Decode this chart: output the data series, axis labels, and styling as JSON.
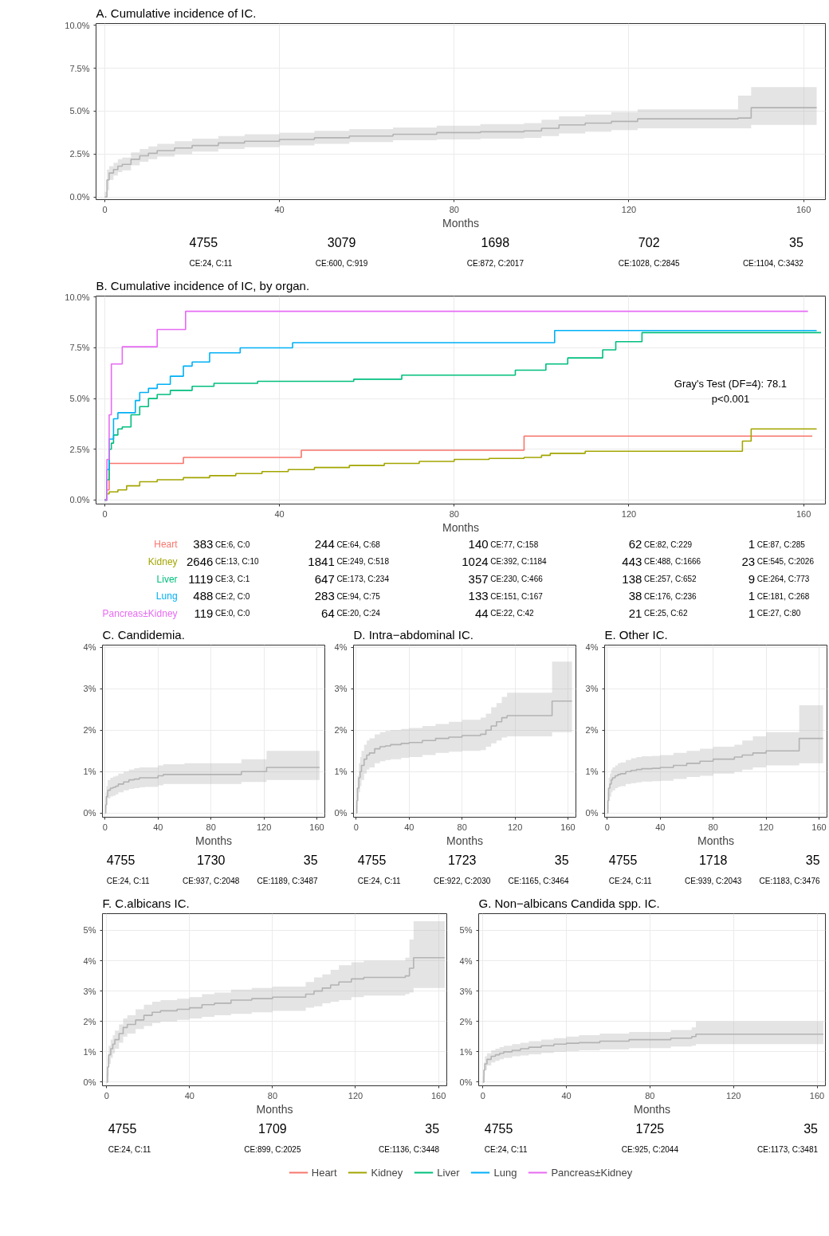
{
  "chart_data": [
    {
      "type": "step",
      "title": "A. Cumulative incidence of IC.",
      "xlabel": "Months",
      "xlim": [
        -2,
        165
      ],
      "ylim": [
        -0.15,
        10.1
      ],
      "xticks": [
        0,
        40,
        80,
        120,
        160
      ],
      "yticks": [
        {
          "value": 0,
          "label": "0.0%"
        },
        {
          "value": 2.5,
          "label": "2.5%"
        },
        {
          "value": 5,
          "label": "5.0%"
        },
        {
          "value": 7.5,
          "label": "7.5%"
        },
        {
          "value": 10,
          "label": "10.0%"
        }
      ],
      "grid": true,
      "series": [
        {
          "color": "#b3b3b3",
          "x": [
            0,
            0.5,
            1,
            2,
            3,
            4,
            6,
            8,
            10,
            12,
            16,
            20,
            26,
            32,
            40,
            48,
            56,
            66,
            76,
            86,
            96,
            100,
            104,
            110,
            116,
            122,
            145,
            148,
            163
          ],
          "values": [
            0,
            1.0,
            1.4,
            1.6,
            1.8,
            1.9,
            2.2,
            2.4,
            2.55,
            2.7,
            2.85,
            3.0,
            3.15,
            3.25,
            3.35,
            3.45,
            3.55,
            3.65,
            3.75,
            3.8,
            3.85,
            4.0,
            4.2,
            4.3,
            4.4,
            4.55,
            4.6,
            5.2,
            5.2
          ],
          "lower": [
            0,
            0.4,
            1.0,
            1.25,
            1.45,
            1.55,
            1.85,
            2.05,
            2.2,
            2.35,
            2.5,
            2.65,
            2.8,
            2.9,
            3.0,
            3.1,
            3.2,
            3.3,
            3.35,
            3.4,
            3.45,
            3.55,
            3.7,
            3.8,
            3.9,
            4.0,
            4.0,
            4.2,
            4.2
          ],
          "upper": [
            0.3,
            1.6,
            1.8,
            2.0,
            2.2,
            2.3,
            2.6,
            2.8,
            2.95,
            3.1,
            3.25,
            3.4,
            3.55,
            3.65,
            3.75,
            3.85,
            3.95,
            4.05,
            4.15,
            4.25,
            4.3,
            4.5,
            4.7,
            4.8,
            4.95,
            5.1,
            5.9,
            6.4,
            6.4
          ]
        }
      ],
      "annotations": [
        "4755",
        "CE:24, C:11",
        "3079",
        "CE:600, C:919",
        "1698",
        "CE:872, C:2017",
        "702",
        "CE:1028, C:2845",
        "35",
        "CE:1104, C:3432"
      ]
    },
    {
      "type": "step",
      "title": "B. Cumulative incidence of IC, by organ.",
      "xlabel": "Months",
      "xlim": [
        -2,
        165
      ],
      "ylim": [
        -0.2,
        10.05
      ],
      "xticks": [
        0,
        40,
        80,
        120,
        160
      ],
      "yticks": [
        {
          "value": 0,
          "label": "0.0%"
        },
        {
          "value": 2.5,
          "label": "2.5%"
        },
        {
          "value": 5,
          "label": "5.0%"
        },
        {
          "value": 7.5,
          "label": "7.5%"
        },
        {
          "value": 10,
          "label": "10.0%"
        }
      ],
      "grid": true,
      "legend": "bottom",
      "series": [
        {
          "name": "Heart",
          "color": "#f8766d",
          "x": [
            0,
            0.5,
            1,
            18,
            45,
            96,
            162
          ],
          "values": [
            0,
            0.5,
            1.8,
            2.1,
            2.45,
            3.15,
            3.15
          ]
        },
        {
          "name": "Kidney",
          "color": "#a3a500",
          "x": [
            0,
            0.5,
            1,
            3,
            5,
            8,
            12,
            18,
            24,
            30,
            36,
            42,
            48,
            56,
            64,
            72,
            80,
            88,
            96,
            100,
            102,
            110,
            146,
            148,
            163
          ],
          "values": [
            0,
            0.3,
            0.4,
            0.5,
            0.7,
            0.9,
            1.0,
            1.1,
            1.2,
            1.3,
            1.4,
            1.5,
            1.6,
            1.7,
            1.8,
            1.9,
            2.0,
            2.05,
            2.1,
            2.2,
            2.3,
            2.4,
            2.9,
            3.5,
            3.5
          ]
        },
        {
          "name": "Liver",
          "color": "#00bf7d",
          "x": [
            0,
            0.5,
            1,
            1.5,
            2,
            3,
            4,
            6,
            8,
            10,
            12,
            15,
            20,
            25,
            35,
            57,
            68,
            94,
            101,
            106,
            114,
            117,
            123,
            164
          ],
          "values": [
            0,
            1.0,
            2.5,
            2.8,
            3.2,
            3.5,
            3.6,
            4.2,
            4.6,
            5.0,
            5.2,
            5.4,
            5.6,
            5.75,
            5.85,
            5.95,
            6.15,
            6.4,
            6.7,
            7.0,
            7.4,
            7.8,
            8.25,
            8.25
          ]
        },
        {
          "name": "Lung",
          "color": "#00b0f6",
          "x": [
            0,
            0.5,
            1,
            2,
            3,
            5,
            7,
            8,
            10,
            12,
            15,
            18,
            20,
            24,
            31,
            43,
            103,
            163
          ],
          "values": [
            0,
            1.5,
            3.0,
            4.0,
            4.3,
            4.3,
            4.9,
            5.3,
            5.5,
            5.7,
            6.1,
            6.6,
            6.8,
            7.25,
            7.5,
            7.75,
            8.35,
            8.35
          ]
        },
        {
          "name": "Pancreas±Kidney",
          "color": "#e76bf3",
          "x": [
            0,
            0.5,
            1,
            1.5,
            4,
            12,
            18.5,
            161
          ],
          "values": [
            0,
            2.0,
            4.2,
            6.7,
            7.55,
            8.4,
            9.3,
            9.3
          ]
        }
      ],
      "annotations": [
        "383",
        "CE:6, C:0",
        "244",
        "CE:64, C:68",
        "140",
        "CE:77, C:158",
        "62",
        "CE:82, C:229",
        "1",
        "CE:87, C:285",
        "2646",
        "CE:13, C:10",
        "1841",
        "CE:249, C:518",
        "1024",
        "CE:392, C:1184",
        "443",
        "CE:488, C:1666",
        "23",
        "CE:545, C:2026",
        "1119",
        "CE:3, C:1",
        "647",
        "CE:173, C:234",
        "357",
        "CE:230, C:466",
        "138",
        "CE:257, C:652",
        "9",
        "CE:264, C:773",
        "488",
        "CE:2, C:0",
        "283",
        "CE:94, C:75",
        "133",
        "CE:151, C:167",
        "38",
        "CE:176, C:236",
        "1",
        "CE:181, C:268",
        "119",
        "CE:0, C:0",
        "64",
        "CE:20, C:24",
        "44",
        "CE:22, C:42",
        "21",
        "CE:25, C:62",
        "1",
        "CE:27, C:80",
        "Gray's Test (DF=4): 78.1",
        "p<0.001"
      ]
    },
    {
      "type": "step",
      "title": "C. Candidemia.",
      "xlabel": "Months",
      "xlim": [
        -2,
        166
      ],
      "ylim": [
        -0.1,
        4.05
      ],
      "xticks": [
        0,
        40,
        80,
        120,
        160
      ],
      "yticks": [
        {
          "value": 0,
          "label": "0%"
        },
        {
          "value": 1,
          "label": "1%"
        },
        {
          "value": 2,
          "label": "2%"
        },
        {
          "value": 3,
          "label": "3%"
        },
        {
          "value": 4,
          "label": "4%"
        }
      ],
      "grid": true,
      "series": [
        {
          "color": "#b3b3b3",
          "x": [
            0,
            0.5,
            1,
            2,
            4,
            6,
            8,
            10,
            14,
            18,
            22,
            26,
            30,
            40,
            44,
            60,
            80,
            103,
            122,
            162
          ],
          "values": [
            0,
            0.2,
            0.4,
            0.55,
            0.6,
            0.62,
            0.65,
            0.7,
            0.75,
            0.8,
            0.82,
            0.85,
            0.85,
            0.9,
            0.93,
            0.93,
            0.93,
            1.0,
            1.1,
            1.1
          ],
          "lower": [
            0,
            0.1,
            0.2,
            0.35,
            0.4,
            0.42,
            0.45,
            0.5,
            0.55,
            0.58,
            0.6,
            0.62,
            0.63,
            0.67,
            0.7,
            0.7,
            0.7,
            0.75,
            0.8,
            0.8
          ],
          "upper": [
            0.2,
            0.5,
            0.65,
            0.8,
            0.85,
            0.88,
            0.9,
            0.95,
            1.0,
            1.05,
            1.08,
            1.1,
            1.1,
            1.15,
            1.18,
            1.2,
            1.2,
            1.3,
            1.5,
            1.5
          ]
        }
      ],
      "annotations": [
        "4755",
        "CE:24, C:11",
        "1730",
        "CE:937, C:2048",
        "35",
        "CE:1189, C:3487"
      ]
    },
    {
      "type": "step",
      "title": "D. Intra−abdominal IC.",
      "xlabel": "Months",
      "xlim": [
        -2,
        166
      ],
      "ylim": [
        -0.1,
        4.05
      ],
      "xticks": [
        0,
        40,
        80,
        120,
        160
      ],
      "yticks": [
        {
          "value": 0,
          "label": "0%"
        },
        {
          "value": 1,
          "label": "1%"
        },
        {
          "value": 2,
          "label": "2%"
        },
        {
          "value": 3,
          "label": "3%"
        },
        {
          "value": 4,
          "label": "4%"
        }
      ],
      "grid": true,
      "series": [
        {
          "color": "#b3b3b3",
          "x": [
            0,
            0.5,
            1,
            2,
            3,
            4,
            6,
            8,
            10,
            14,
            18,
            22,
            26,
            34,
            40,
            50,
            60,
            70,
            80,
            94,
            98,
            102,
            106,
            110,
            114,
            120,
            148,
            163
          ],
          "values": [
            0,
            0.3,
            0.6,
            0.85,
            1.0,
            1.15,
            1.3,
            1.4,
            1.45,
            1.55,
            1.6,
            1.62,
            1.65,
            1.68,
            1.7,
            1.75,
            1.8,
            1.83,
            1.87,
            1.9,
            2.0,
            2.1,
            2.2,
            2.3,
            2.35,
            2.35,
            2.7,
            2.7
          ],
          "lower": [
            0,
            0.1,
            0.3,
            0.5,
            0.65,
            0.8,
            0.95,
            1.05,
            1.1,
            1.2,
            1.25,
            1.28,
            1.3,
            1.33,
            1.35,
            1.4,
            1.45,
            1.48,
            1.5,
            1.52,
            1.6,
            1.68,
            1.75,
            1.82,
            1.85,
            1.85,
            1.95,
            1.95
          ],
          "upper": [
            0.2,
            0.6,
            0.9,
            1.2,
            1.35,
            1.5,
            1.65,
            1.75,
            1.8,
            1.9,
            1.95,
            1.98,
            2.0,
            2.03,
            2.05,
            2.1,
            2.15,
            2.2,
            2.25,
            2.3,
            2.4,
            2.55,
            2.65,
            2.8,
            2.9,
            2.9,
            3.65,
            3.65
          ]
        }
      ],
      "annotations": [
        "4755",
        "CE:24, C:11",
        "1723",
        "CE:922, C:2030",
        "35",
        "CE:1165, C:3464"
      ]
    },
    {
      "type": "step",
      "title": "E. Other IC.",
      "xlabel": "Months",
      "xlim": [
        -2,
        166
      ],
      "ylim": [
        -0.1,
        4.05
      ],
      "xticks": [
        0,
        40,
        80,
        120,
        160
      ],
      "yticks": [
        {
          "value": 0,
          "label": "0%"
        },
        {
          "value": 1,
          "label": "1%"
        },
        {
          "value": 2,
          "label": "2%"
        },
        {
          "value": 3,
          "label": "3%"
        },
        {
          "value": 4,
          "label": "4%"
        }
      ],
      "grid": true,
      "series": [
        {
          "color": "#b3b3b3",
          "x": [
            0,
            0.5,
            1,
            2,
            3,
            4,
            6,
            8,
            10,
            14,
            18,
            22,
            26,
            34,
            40,
            50,
            60,
            70,
            80,
            96,
            102,
            110,
            120,
            145,
            163
          ],
          "values": [
            0,
            0.3,
            0.6,
            0.7,
            0.8,
            0.85,
            0.9,
            0.93,
            0.95,
            1.0,
            1.03,
            1.05,
            1.07,
            1.08,
            1.1,
            1.15,
            1.2,
            1.25,
            1.3,
            1.35,
            1.4,
            1.45,
            1.5,
            1.8,
            1.8
          ],
          "lower": [
            0,
            0.1,
            0.3,
            0.4,
            0.5,
            0.55,
            0.6,
            0.63,
            0.65,
            0.7,
            0.72,
            0.74,
            0.76,
            0.77,
            0.78,
            0.82,
            0.87,
            0.9,
            0.95,
            1.0,
            1.05,
            1.1,
            1.15,
            1.2,
            1.2
          ],
          "upper": [
            0.2,
            0.5,
            0.85,
            0.95,
            1.05,
            1.1,
            1.15,
            1.2,
            1.22,
            1.28,
            1.32,
            1.35,
            1.37,
            1.38,
            1.4,
            1.45,
            1.5,
            1.55,
            1.6,
            1.65,
            1.75,
            1.85,
            1.95,
            2.6,
            2.6
          ]
        }
      ],
      "annotations": [
        "4755",
        "CE:24, C:11",
        "1718",
        "CE:939, C:2043",
        "35",
        "CE:1183, C:3476"
      ]
    },
    {
      "type": "step",
      "title": "F. C.albicans IC.",
      "xlabel": "Months",
      "xlim": [
        -2,
        164
      ],
      "ylim": [
        -0.12,
        5.55
      ],
      "xticks": [
        0,
        40,
        80,
        120,
        160
      ],
      "yticks": [
        {
          "value": 0,
          "label": "0%"
        },
        {
          "value": 1,
          "label": "1%"
        },
        {
          "value": 2,
          "label": "2%"
        },
        {
          "value": 3,
          "label": "3%"
        },
        {
          "value": 4,
          "label": "4%"
        },
        {
          "value": 5,
          "label": "5%"
        }
      ],
      "grid": true,
      "series": [
        {
          "color": "#b3b3b3",
          "x": [
            0,
            0.5,
            1,
            2,
            3,
            4,
            6,
            8,
            10,
            14,
            18,
            22,
            26,
            34,
            40,
            46,
            52,
            60,
            70,
            80,
            96,
            100,
            104,
            108,
            112,
            118,
            124,
            144,
            146,
            148,
            163
          ],
          "values": [
            0,
            0.5,
            0.9,
            1.1,
            1.25,
            1.4,
            1.6,
            1.8,
            1.9,
            2.05,
            2.2,
            2.3,
            2.35,
            2.4,
            2.45,
            2.55,
            2.6,
            2.7,
            2.75,
            2.8,
            2.9,
            3.0,
            3.1,
            3.2,
            3.3,
            3.4,
            3.45,
            3.5,
            3.75,
            4.1,
            4.1
          ],
          "lower": [
            0,
            0.2,
            0.6,
            0.8,
            0.95,
            1.1,
            1.3,
            1.5,
            1.6,
            1.75,
            1.85,
            1.95,
            2.0,
            2.05,
            2.1,
            2.15,
            2.2,
            2.25,
            2.3,
            2.35,
            2.45,
            2.5,
            2.6,
            2.65,
            2.7,
            2.8,
            2.85,
            2.9,
            2.95,
            3.1,
            3.1
          ],
          "upper": [
            0.3,
            0.8,
            1.2,
            1.4,
            1.55,
            1.7,
            1.9,
            2.1,
            2.2,
            2.4,
            2.55,
            2.65,
            2.7,
            2.75,
            2.8,
            2.9,
            2.95,
            3.05,
            3.1,
            3.15,
            3.3,
            3.45,
            3.55,
            3.7,
            3.85,
            3.95,
            4.0,
            4.1,
            4.7,
            5.3,
            5.3
          ]
        }
      ],
      "annotations": [
        "4755",
        "CE:24, C:11",
        "1709",
        "CE:899, C:2025",
        "35",
        "CE:1136, C:3448"
      ]
    },
    {
      "type": "step",
      "title": "G. Non−albicans Candida spp. IC.",
      "xlabel": "Months",
      "xlim": [
        -2,
        164
      ],
      "ylim": [
        -0.12,
        5.55
      ],
      "xticks": [
        0,
        40,
        80,
        120,
        160
      ],
      "yticks": [
        {
          "value": 0,
          "label": "0%"
        },
        {
          "value": 1,
          "label": "1%"
        },
        {
          "value": 2,
          "label": "2%"
        },
        {
          "value": 3,
          "label": "3%"
        },
        {
          "value": 4,
          "label": "4%"
        },
        {
          "value": 5,
          "label": "5%"
        }
      ],
      "grid": true,
      "series": [
        {
          "color": "#b3b3b3",
          "x": [
            0,
            0.5,
            1,
            2,
            4,
            6,
            8,
            10,
            14,
            18,
            22,
            28,
            34,
            40,
            46,
            56,
            70,
            90,
            100,
            102,
            163
          ],
          "values": [
            0,
            0.4,
            0.6,
            0.75,
            0.85,
            0.9,
            0.95,
            1.0,
            1.05,
            1.1,
            1.15,
            1.2,
            1.25,
            1.28,
            1.3,
            1.35,
            1.4,
            1.45,
            1.5,
            1.58,
            1.58
          ],
          "lower": [
            0,
            0.2,
            0.4,
            0.55,
            0.65,
            0.7,
            0.75,
            0.8,
            0.85,
            0.88,
            0.92,
            0.96,
            1.0,
            1.02,
            1.05,
            1.08,
            1.12,
            1.17,
            1.2,
            1.25,
            1.25
          ],
          "upper": [
            0.2,
            0.65,
            0.85,
            0.95,
            1.05,
            1.1,
            1.15,
            1.2,
            1.25,
            1.3,
            1.35,
            1.4,
            1.45,
            1.5,
            1.55,
            1.6,
            1.65,
            1.72,
            1.8,
            2.0,
            2.0
          ]
        }
      ],
      "annotations": [
        "4755",
        "CE:24, C:11",
        "1725",
        "CE:925, C:2044",
        "35",
        "CE:1173, C:3481"
      ]
    }
  ]
}
